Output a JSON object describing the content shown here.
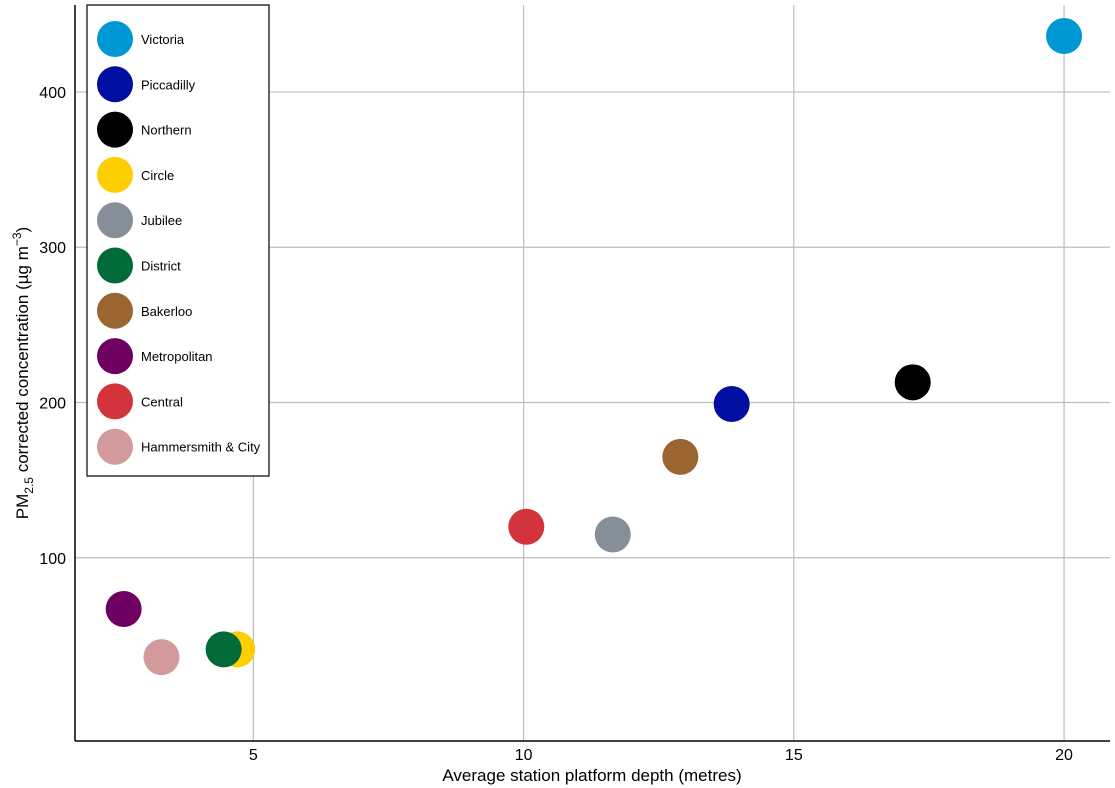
{
  "chart_data": {
    "type": "scatter",
    "title": "",
    "xlabel": "Average station platform depth (metres)",
    "ylabel": {
      "prefix": "PM",
      "subscript": "2.5",
      "middle": " corrected concentration (µg m",
      "superscript": "−3",
      "suffix": ")"
    },
    "xlim": [
      1.7,
      20.85
    ],
    "ylim": [
      -18,
      456
    ],
    "xticks": [
      5,
      10,
      15,
      20
    ],
    "yticks": [
      100,
      200,
      300,
      400
    ],
    "grid": true,
    "legend_position": "top-left",
    "series": [
      {
        "name": "Victoria",
        "color": "#0098D4",
        "x": 20.0,
        "y": 436
      },
      {
        "name": "Piccadilly",
        "color": "#000F9F",
        "x": 13.85,
        "y": 199
      },
      {
        "name": "Northern",
        "color": "#000000",
        "x": 17.2,
        "y": 213
      },
      {
        "name": "Circle",
        "color": "#FFCE00",
        "x": 4.7,
        "y": 41
      },
      {
        "name": "Jubilee",
        "color": "#868F98",
        "x": 11.65,
        "y": 115
      },
      {
        "name": "District",
        "color": "#006A38",
        "x": 4.45,
        "y": 41
      },
      {
        "name": "Bakerloo",
        "color": "#9B6532",
        "x": 12.9,
        "y": 165
      },
      {
        "name": "Metropolitan",
        "color": "#6E0062",
        "x": 2.6,
        "y": 67
      },
      {
        "name": "Central",
        "color": "#D3343B",
        "x": 10.05,
        "y": 120
      },
      {
        "name": "Hammersmith & City",
        "color": "#D29A9C",
        "x": 3.3,
        "y": 36
      }
    ]
  }
}
